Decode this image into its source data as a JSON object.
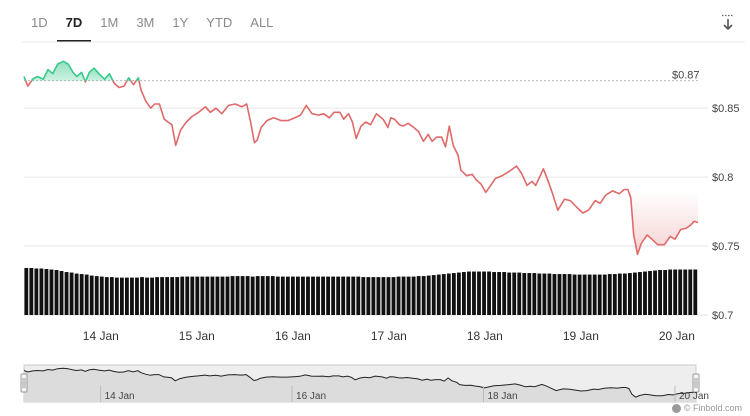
{
  "range_tabs": [
    {
      "label": "1D",
      "active": false
    },
    {
      "label": "7D",
      "active": true
    },
    {
      "label": "1M",
      "active": false
    },
    {
      "label": "3M",
      "active": false
    },
    {
      "label": "1Y",
      "active": false
    },
    {
      "label": "YTD",
      "active": false
    },
    {
      "label": "ALL",
      "active": false
    }
  ],
  "download_icon": "download-icon",
  "credit": "© Finbold.com",
  "colors": {
    "up_line": "#38c88a",
    "down_line": "#e06a6a",
    "volume": "#111111",
    "navigator_line": "#222222",
    "grid": "#e6e6e6"
  },
  "chart_data": {
    "type": "line",
    "reference_value": 0.87,
    "reference_label": "$0.87",
    "ylim": [
      0.7,
      0.898
    ],
    "y_ticks": [
      {
        "value": 0.85,
        "label": "$0.85"
      },
      {
        "value": 0.8,
        "label": "$0.8"
      },
      {
        "value": 0.75,
        "label": "$0.75"
      },
      {
        "value": 0.7,
        "label": "$0.7"
      }
    ],
    "x_ticks": [
      {
        "t": 1.0,
        "label": "14 Jan"
      },
      {
        "t": 2.0,
        "label": "15 Jan"
      },
      {
        "t": 3.0,
        "label": "16 Jan"
      },
      {
        "t": 4.0,
        "label": "17 Jan"
      },
      {
        "t": 5.0,
        "label": "18 Jan"
      },
      {
        "t": 6.0,
        "label": "19 Jan"
      },
      {
        "t": 7.0,
        "label": "20 Jan"
      }
    ],
    "x_range": [
      0.2,
      7.22
    ],
    "series": [
      {
        "values": [
          [
            0.2,
            0.873
          ],
          [
            0.24,
            0.866
          ],
          [
            0.29,
            0.871
          ],
          [
            0.34,
            0.873
          ],
          [
            0.4,
            0.871
          ],
          [
            0.45,
            0.878
          ],
          [
            0.5,
            0.875
          ],
          [
            0.55,
            0.882
          ],
          [
            0.61,
            0.884
          ],
          [
            0.66,
            0.882
          ],
          [
            0.71,
            0.876
          ],
          [
            0.75,
            0.873
          ],
          [
            0.8,
            0.876
          ],
          [
            0.84,
            0.869
          ],
          [
            0.88,
            0.876
          ],
          [
            0.93,
            0.879
          ],
          [
            0.98,
            0.875
          ],
          [
            1.04,
            0.871
          ],
          [
            1.09,
            0.875
          ],
          [
            1.14,
            0.868
          ],
          [
            1.19,
            0.865
          ],
          [
            1.24,
            0.866
          ],
          [
            1.29,
            0.872
          ],
          [
            1.34,
            0.867
          ],
          [
            1.39,
            0.872
          ],
          [
            1.42,
            0.863
          ],
          [
            1.47,
            0.855
          ],
          [
            1.52,
            0.85
          ],
          [
            1.56,
            0.853
          ],
          [
            1.61,
            0.853
          ],
          [
            1.66,
            0.842
          ],
          [
            1.7,
            0.84
          ],
          [
            1.74,
            0.838
          ],
          [
            1.78,
            0.823
          ],
          [
            1.83,
            0.834
          ],
          [
            1.89,
            0.84
          ],
          [
            1.95,
            0.844
          ],
          [
            2.02,
            0.847
          ],
          [
            2.09,
            0.851
          ],
          [
            2.14,
            0.847
          ],
          [
            2.2,
            0.85
          ],
          [
            2.26,
            0.846
          ],
          [
            2.33,
            0.852
          ],
          [
            2.4,
            0.853
          ],
          [
            2.47,
            0.851
          ],
          [
            2.52,
            0.853
          ],
          [
            2.56,
            0.84
          ],
          [
            2.6,
            0.825
          ],
          [
            2.63,
            0.827
          ],
          [
            2.67,
            0.836
          ],
          [
            2.73,
            0.841
          ],
          [
            2.8,
            0.843
          ],
          [
            2.88,
            0.841
          ],
          [
            2.95,
            0.841
          ],
          [
            3.02,
            0.843
          ],
          [
            3.08,
            0.845
          ],
          [
            3.14,
            0.852
          ],
          [
            3.2,
            0.846
          ],
          [
            3.27,
            0.845
          ],
          [
            3.32,
            0.846
          ],
          [
            3.38,
            0.843
          ],
          [
            3.43,
            0.847
          ],
          [
            3.49,
            0.847
          ],
          [
            3.53,
            0.842
          ],
          [
            3.58,
            0.846
          ],
          [
            3.62,
            0.84
          ],
          [
            3.66,
            0.828
          ],
          [
            3.71,
            0.837
          ],
          [
            3.76,
            0.84
          ],
          [
            3.81,
            0.838
          ],
          [
            3.87,
            0.846
          ],
          [
            3.94,
            0.842
          ],
          [
            3.99,
            0.836
          ],
          [
            4.02,
            0.843
          ],
          [
            4.06,
            0.842
          ],
          [
            4.11,
            0.838
          ],
          [
            4.15,
            0.837
          ],
          [
            4.2,
            0.839
          ],
          [
            4.26,
            0.836
          ],
          [
            4.31,
            0.833
          ],
          [
            4.36,
            0.826
          ],
          [
            4.41,
            0.831
          ],
          [
            4.45,
            0.826
          ],
          [
            4.5,
            0.829
          ],
          [
            4.55,
            0.829
          ],
          [
            4.59,
            0.822
          ],
          [
            4.63,
            0.837
          ],
          [
            4.67,
            0.823
          ],
          [
            4.72,
            0.816
          ],
          [
            4.75,
            0.805
          ],
          [
            4.81,
            0.801
          ],
          [
            4.87,
            0.802
          ],
          [
            4.91,
            0.798
          ],
          [
            4.96,
            0.795
          ],
          [
            5.01,
            0.789
          ],
          [
            5.05,
            0.793
          ],
          [
            5.11,
            0.799
          ],
          [
            5.18,
            0.801
          ],
          [
            5.25,
            0.804
          ],
          [
            5.33,
            0.808
          ],
          [
            5.38,
            0.803
          ],
          [
            5.44,
            0.794
          ],
          [
            5.49,
            0.797
          ],
          [
            5.53,
            0.794
          ],
          [
            5.57,
            0.8
          ],
          [
            5.61,
            0.806
          ],
          [
            5.66,
            0.797
          ],
          [
            5.7,
            0.789
          ],
          [
            5.76,
            0.776
          ],
          [
            5.83,
            0.784
          ],
          [
            5.89,
            0.783
          ],
          [
            5.96,
            0.778
          ],
          [
            6.02,
            0.774
          ],
          [
            6.08,
            0.776
          ],
          [
            6.15,
            0.783
          ],
          [
            6.2,
            0.781
          ],
          [
            6.26,
            0.787
          ],
          [
            6.33,
            0.79
          ],
          [
            6.4,
            0.788
          ],
          [
            6.45,
            0.791
          ],
          [
            6.49,
            0.791
          ],
          [
            6.52,
            0.785
          ],
          [
            6.55,
            0.758
          ],
          [
            6.59,
            0.744
          ],
          [
            6.63,
            0.752
          ],
          [
            6.69,
            0.758
          ],
          [
            6.74,
            0.755
          ],
          [
            6.8,
            0.751
          ],
          [
            6.87,
            0.751
          ],
          [
            6.93,
            0.757
          ],
          [
            6.98,
            0.755
          ],
          [
            7.04,
            0.762
          ],
          [
            7.1,
            0.763
          ],
          [
            7.14,
            0.765
          ],
          [
            7.18,
            0.768
          ],
          [
            7.22,
            0.767
          ]
        ]
      }
    ],
    "volume": [
      0.93,
      0.93,
      0.92,
      0.92,
      0.91,
      0.9,
      0.89,
      0.87,
      0.85,
      0.84,
      0.82,
      0.81,
      0.8,
      0.78,
      0.77,
      0.76,
      0.75,
      0.75,
      0.74,
      0.74,
      0.74,
      0.74,
      0.74,
      0.75,
      0.74,
      0.74,
      0.75,
      0.75,
      0.75,
      0.75,
      0.75,
      0.76,
      0.76,
      0.76,
      0.76,
      0.76,
      0.76,
      0.76,
      0.76,
      0.76,
      0.76,
      0.77,
      0.77,
      0.77,
      0.77,
      0.76,
      0.77,
      0.77,
      0.77,
      0.77,
      0.76,
      0.76,
      0.76,
      0.76,
      0.76,
      0.76,
      0.76,
      0.76,
      0.76,
      0.76,
      0.76,
      0.76,
      0.76,
      0.76,
      0.76,
      0.76,
      0.76,
      0.75,
      0.75,
      0.75,
      0.75,
      0.75,
      0.75,
      0.75,
      0.76,
      0.76,
      0.76,
      0.76,
      0.77,
      0.77,
      0.78,
      0.79,
      0.8,
      0.81,
      0.82,
      0.83,
      0.84,
      0.85,
      0.86,
      0.86,
      0.86,
      0.86,
      0.86,
      0.85,
      0.85,
      0.85,
      0.84,
      0.84,
      0.84,
      0.83,
      0.83,
      0.83,
      0.82,
      0.82,
      0.82,
      0.81,
      0.81,
      0.81,
      0.81,
      0.8,
      0.8,
      0.8,
      0.8,
      0.8,
      0.8,
      0.8,
      0.81,
      0.81,
      0.82,
      0.82,
      0.83,
      0.84,
      0.85,
      0.86,
      0.87,
      0.88,
      0.89,
      0.89,
      0.9,
      0.9,
      0.9,
      0.9,
      0.9,
      0.9
    ],
    "navigator": {
      "x_ticks": [
        {
          "t": 1.0,
          "label": "14 Jan"
        },
        {
          "t": 3.0,
          "label": "16 Jan"
        },
        {
          "t": 5.0,
          "label": "18 Jan"
        },
        {
          "t": 7.0,
          "label": "20 Jan"
        }
      ]
    }
  }
}
